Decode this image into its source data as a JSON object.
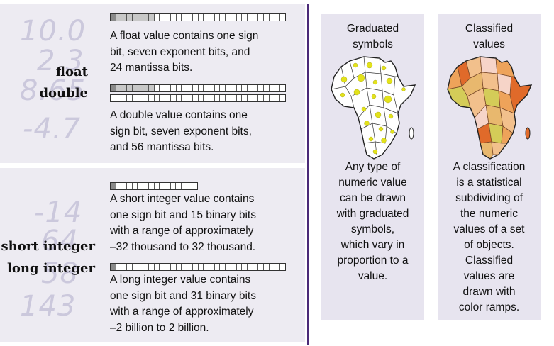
{
  "left": {
    "float_numbers": [
      "10.0",
      "2.3",
      "8.65",
      "-4.7"
    ],
    "integer_numbers": [
      "-14",
      "64",
      "58",
      "143"
    ],
    "labels": {
      "float": "float",
      "double": "double",
      "short_integer": "short integer",
      "long_integer": "long integer"
    },
    "descriptions": {
      "float": [
        "A float value contains one sign",
        "bit, seven exponent bits, and",
        "24 mantissa bits."
      ],
      "double": [
        "A double value contains one",
        "sign bit, seven exponent bits,",
        "and 56 mantissa bits."
      ],
      "short": [
        "A short integer value contains",
        "one sign bit and 15 binary bits",
        "with a range of approximately",
        "–32 thousand to 32 thousand."
      ],
      "long": [
        "A long integer value contains",
        "one sign bit and 31 binary bits",
        "with a range of approximately",
        "–2 billion to 2 billion."
      ]
    },
    "bit_counts": {
      "float": 32,
      "double": 64,
      "short": 16,
      "long": 32
    }
  },
  "graduated": {
    "title": [
      "Graduated",
      "symbols"
    ],
    "text": [
      "Any type of",
      "numeric value",
      "can be drawn",
      "with graduated",
      "symbols,",
      "which vary in",
      "proportion to a",
      "value."
    ]
  },
  "classified": {
    "title": [
      "Classified",
      "values"
    ],
    "text": [
      "A classification",
      "is a statistical",
      "subdividing of",
      "the numeric",
      "values of a set",
      "of objects.",
      "Classified",
      "values are",
      "drawn with",
      "color ramps."
    ]
  },
  "colors": {
    "panel": "#edebf2",
    "divider": "#4b2a78",
    "big_numbers": "#cbc8dc",
    "symbol": "#e3e21a",
    "class_ramp": [
      "#e06a2a",
      "#eea35a",
      "#f2c08c",
      "#f6d4c8",
      "#d4cc58",
      "#e8b86e"
    ]
  }
}
